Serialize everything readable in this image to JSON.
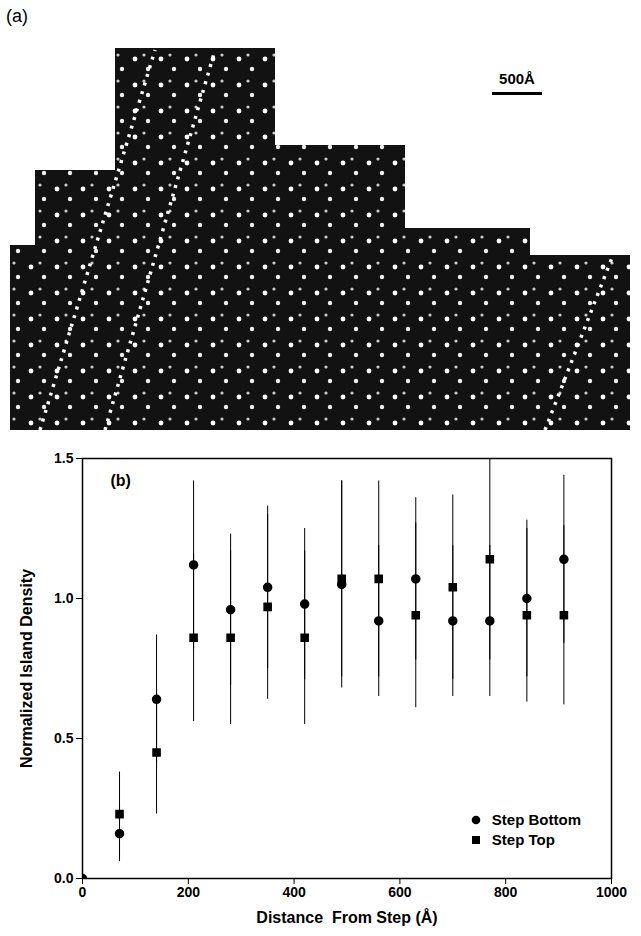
{
  "image_panel": {
    "label": "(a)",
    "scale_bar_label": "500Å"
  },
  "chart_data": {
    "type": "scatter",
    "annotations": [
      "(b)"
    ],
    "x_label": "Distance  From Step (Å)",
    "y_label": "Normalized Island Density",
    "x": [
      0,
      70,
      140,
      210,
      280,
      350,
      420,
      490,
      560,
      630,
      700,
      770,
      840,
      910
    ],
    "series": [
      {
        "name": "Step Bottom",
        "marker": "circle",
        "color": "#000000",
        "values": [
          0.0,
          0.16,
          0.64,
          1.12,
          0.96,
          1.04,
          0.98,
          1.05,
          0.92,
          1.07,
          0.92,
          0.92,
          1.0,
          1.14
        ],
        "errors": [
          null,
          0.1,
          0.23,
          0.3,
          0.27,
          0.29,
          0.27,
          0.37,
          0.27,
          0.29,
          0.27,
          0.27,
          0.28,
          0.3
        ]
      },
      {
        "name": "Step Top",
        "marker": "square",
        "color": "#000000",
        "values": [
          null,
          0.23,
          0.45,
          0.86,
          0.86,
          0.97,
          0.86,
          1.07,
          1.07,
          0.94,
          1.04,
          1.14,
          0.94,
          0.94
        ],
        "errors": [
          null,
          0.15,
          0.22,
          0.3,
          0.31,
          0.33,
          0.31,
          0.35,
          0.35,
          0.33,
          0.33,
          0.36,
          0.31,
          0.32
        ]
      }
    ],
    "xlim": [
      0,
      1000
    ],
    "xticks": [
      0,
      200,
      400,
      600,
      800,
      1000
    ],
    "ylim": [
      0,
      1.5
    ],
    "yticks": [
      {
        "value": 0,
        "label": "0.0"
      },
      {
        "value": 0.5,
        "label": "0.5"
      },
      {
        "value": 1,
        "label": "1.0"
      },
      {
        "value": 1.5,
        "label": "1.5"
      }
    ],
    "legend": "bottom-right",
    "grid": false
  }
}
